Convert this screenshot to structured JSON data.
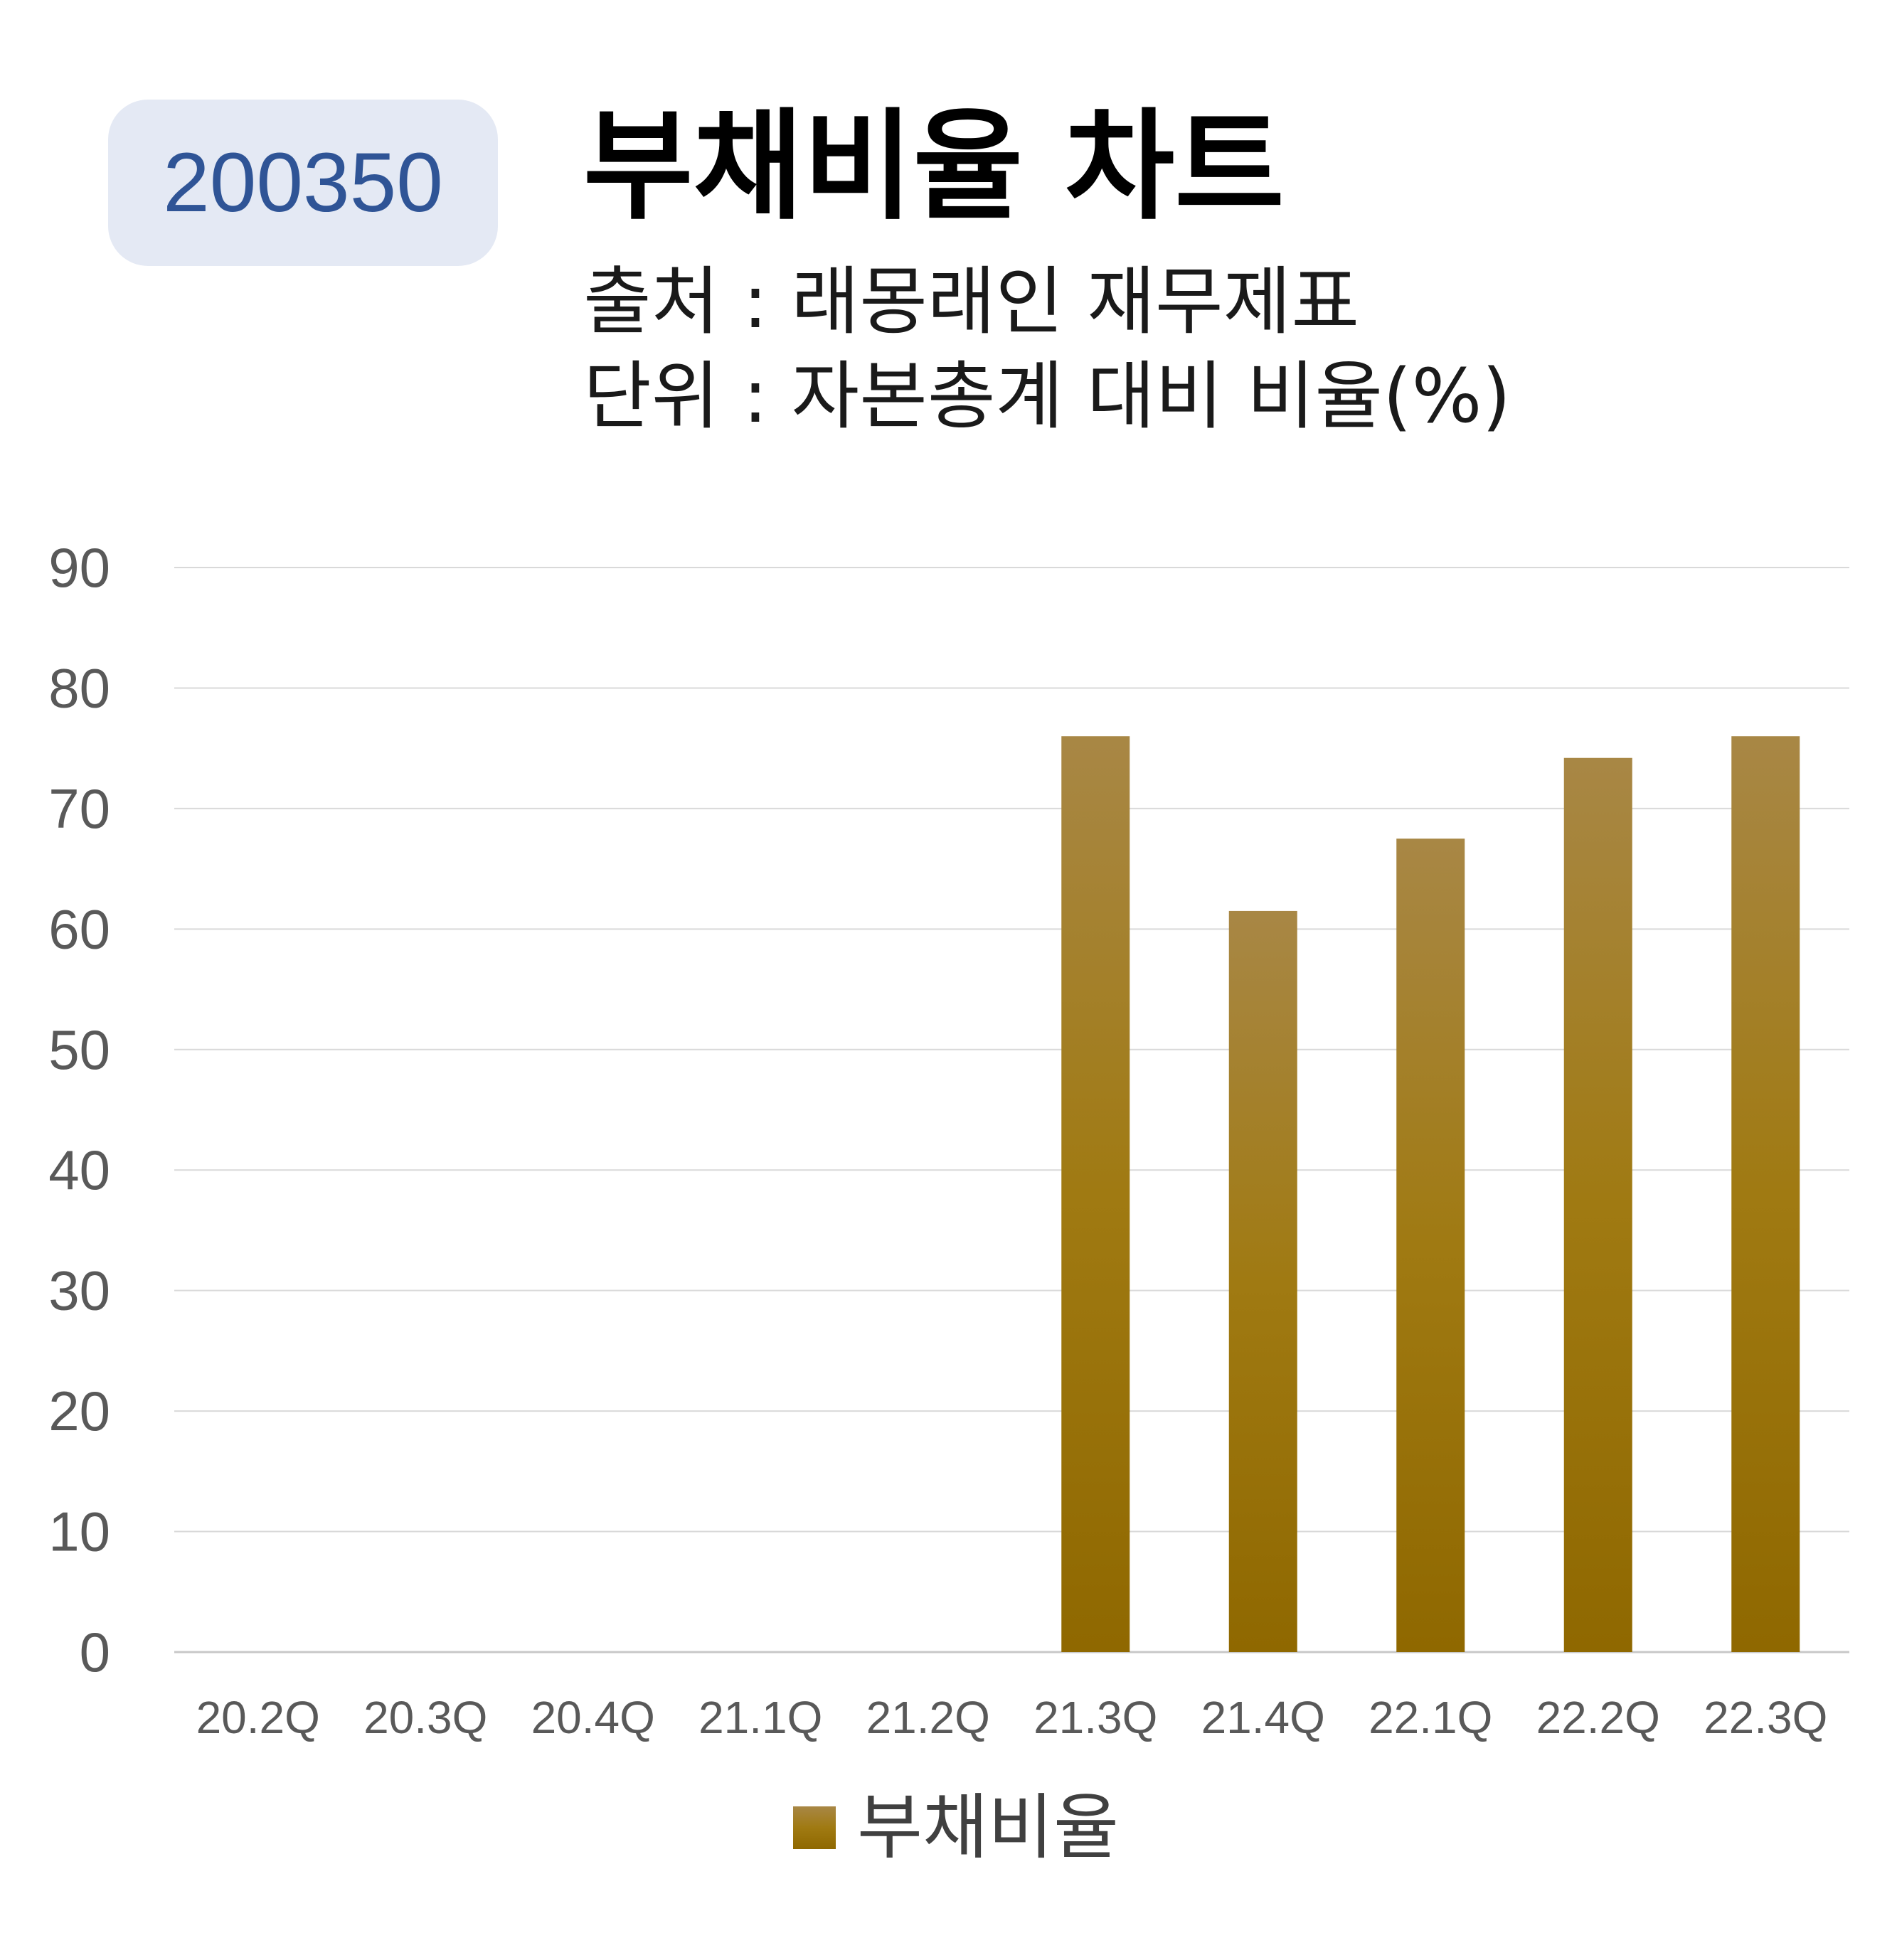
{
  "badge": {
    "code": "200350"
  },
  "header": {
    "title": "부채비율 차트",
    "source": "출처 : 래몽래인 재무제표",
    "unit": "단위 : 자본총계 대비 비율(%)"
  },
  "colors": {
    "bar_top": "#a88745",
    "bar_mid": "#a07a12",
    "bar_bottom": "#8f6800",
    "badge_bg": "#e4e9f4",
    "badge_text": "#2f5496",
    "grid": "#d9d9d9"
  },
  "chart_data": {
    "type": "bar",
    "categories": [
      "20.2Q",
      "20.3Q",
      "20.4Q",
      "21.1Q",
      "21.2Q",
      "21.3Q",
      "21.4Q",
      "22.1Q",
      "22.2Q",
      "22.3Q"
    ],
    "series": [
      {
        "name": "부채비율",
        "values": [
          null,
          null,
          null,
          null,
          null,
          76,
          61.5,
          67.5,
          74.2,
          76
        ]
      }
    ],
    "ylim": [
      0,
      90
    ],
    "yticks": [
      0,
      10,
      20,
      30,
      40,
      50,
      60,
      70,
      80,
      90
    ],
    "grid": true,
    "legend": "bottom-center"
  }
}
